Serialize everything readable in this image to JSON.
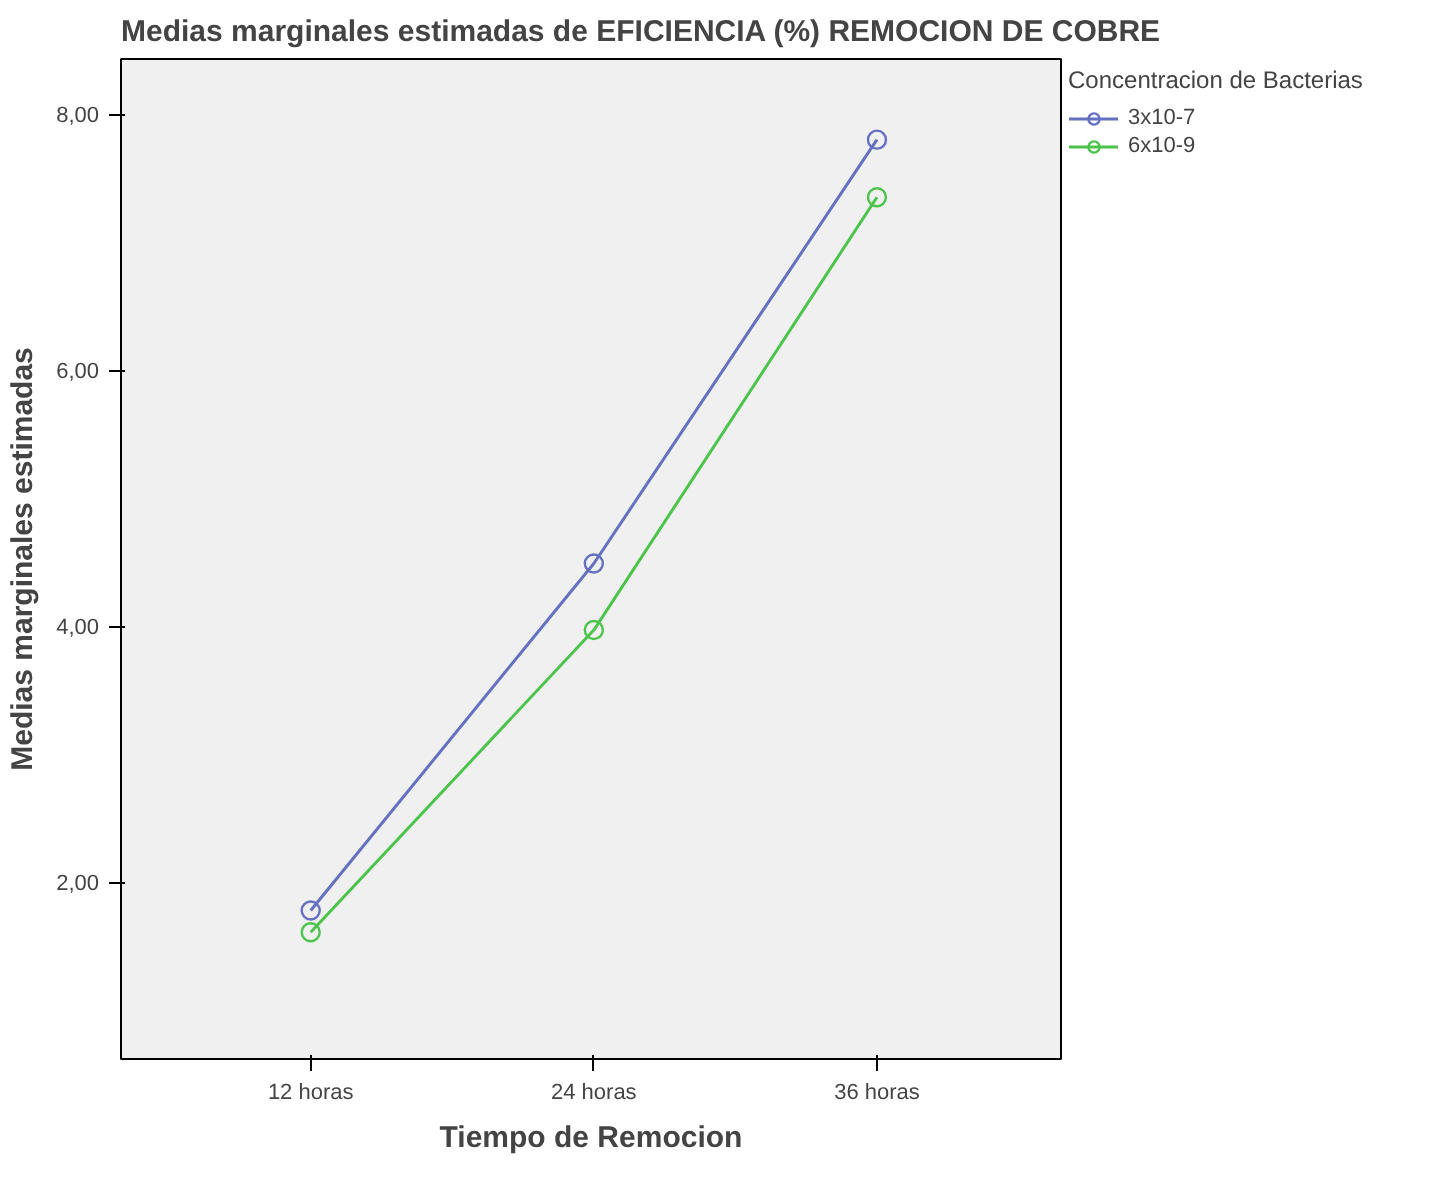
{
  "chart_data": {
    "type": "line",
    "title": "Medias marginales estimadas de EFICIENCIA (%) REMOCION DE COBRE",
    "xlabel": "Tiempo de Remocion",
    "ylabel": "Medias marginales estimadas",
    "legend_title": "Concentracion de Bacterias",
    "categories": [
      "12 horas",
      "24 horas",
      "36 horas"
    ],
    "series": [
      {
        "name": "3x10-7",
        "color": "#6470c0",
        "values": [
          1.78,
          4.49,
          7.8
        ]
      },
      {
        "name": "6x10-9",
        "color": "#4cc44c",
        "values": [
          1.61,
          3.97,
          7.35
        ]
      }
    ],
    "ylim": [
      0.62,
      8.43
    ],
    "yticks": [
      {
        "value": 2,
        "label": "2,00"
      },
      {
        "value": 4,
        "label": "4,00"
      },
      {
        "value": 6,
        "label": "6,00"
      },
      {
        "value": 8,
        "label": "8,00"
      }
    ],
    "grid": false,
    "legend": "right",
    "marker": "circle",
    "line_style": "solid"
  }
}
